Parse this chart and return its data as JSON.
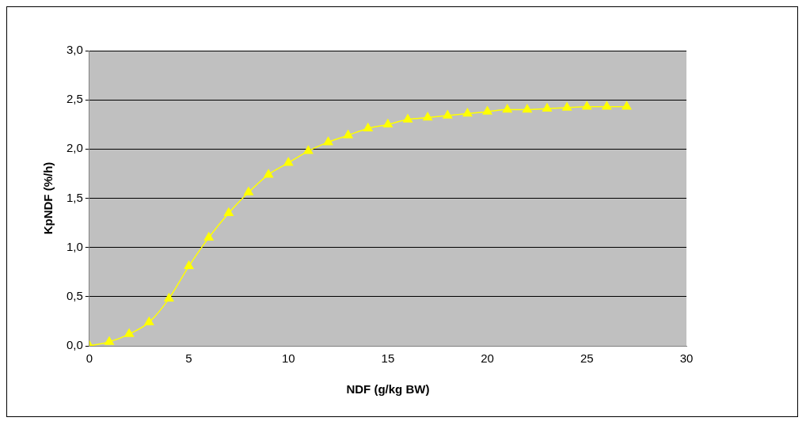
{
  "chart_data": {
    "type": "line",
    "xlabel": "NDF (g/kg BW)",
    "ylabel": "KpNDF (%/h)",
    "x": [
      0,
      1,
      2,
      3,
      4,
      5,
      6,
      7,
      8,
      9,
      10,
      11,
      12,
      13,
      14,
      15,
      16,
      17,
      18,
      19,
      20,
      21,
      22,
      23,
      24,
      25,
      26,
      27
    ],
    "series": [
      {
        "color": "#ffff00",
        "values": [
          0,
          0.04,
          0.12,
          0.24,
          0.48,
          0.81,
          1.1,
          1.35,
          1.56,
          1.74,
          1.86,
          1.98,
          2.07,
          2.14,
          2.21,
          2.25,
          2.3,
          2.32,
          2.34,
          2.36,
          2.38,
          2.4,
          2.4,
          2.41,
          2.42,
          2.43,
          2.43,
          2.43
        ]
      }
    ],
    "xlim": [
      0,
      30
    ],
    "xticks": [
      0,
      5,
      10,
      15,
      20,
      25,
      30
    ],
    "ylim": [
      0,
      3
    ],
    "yticks": [
      {
        "value": 0,
        "label": "0,0"
      },
      {
        "value": 0.5,
        "label": "0,5"
      },
      {
        "value": 1,
        "label": "1,0"
      },
      {
        "value": 1.5,
        "label": "1,5"
      },
      {
        "value": 2,
        "label": "2,0"
      },
      {
        "value": 2.5,
        "label": "2,5"
      },
      {
        "value": 3,
        "label": "3,0"
      }
    ],
    "grid": "y",
    "marker": "triangle",
    "line_style": "solid",
    "legend": false
  }
}
